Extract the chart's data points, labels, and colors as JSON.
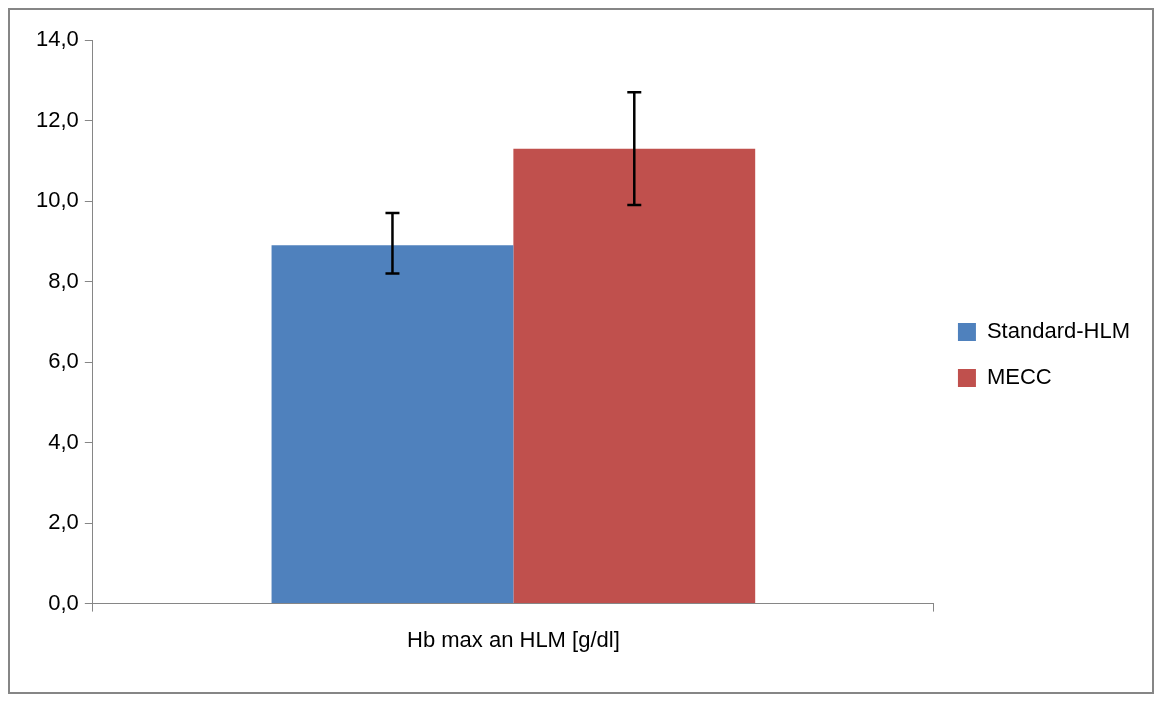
{
  "chart_data": {
    "type": "bar",
    "categories": [
      "Hb max an HLM [g/dl]"
    ],
    "series": [
      {
        "name": "Standard-HLM",
        "color": "#4f81bd",
        "values": [
          8.9
        ],
        "errors": [
          [
            8.2,
            9.7
          ]
        ]
      },
      {
        "name": "MECC",
        "color": "#c0504d",
        "values": [
          11.3
        ],
        "errors": [
          [
            9.9,
            12.7
          ]
        ]
      }
    ],
    "ylim": [
      0,
      14
    ],
    "yticks": [
      {
        "value": 0,
        "label": "0,0"
      },
      {
        "value": 2,
        "label": "2,0"
      },
      {
        "value": 4,
        "label": "4,0"
      },
      {
        "value": 6,
        "label": "6,0"
      },
      {
        "value": 8,
        "label": "8,0"
      },
      {
        "value": 10,
        "label": "10,0"
      },
      {
        "value": 12,
        "label": "12,0"
      },
      {
        "value": 14,
        "label": "14,0"
      }
    ],
    "grid": false,
    "legend": "right"
  }
}
